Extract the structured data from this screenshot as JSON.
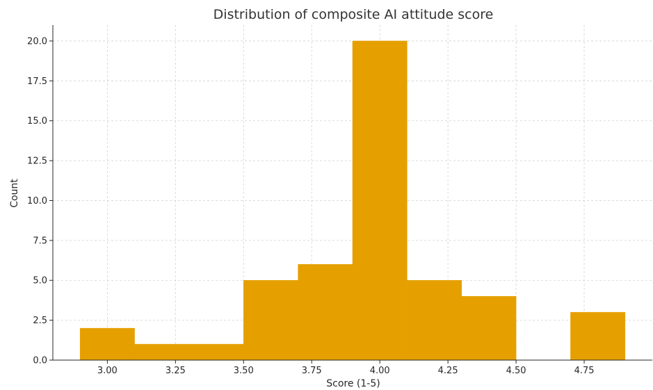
{
  "chart_data": {
    "type": "bar",
    "title": "Distribution of composite AI attitude score",
    "xlabel": "Score (1-5)",
    "ylabel": "Count",
    "bar_color": "#e5a000",
    "bins": [
      {
        "start": 2.9,
        "end": 3.1,
        "count": 2
      },
      {
        "start": 3.1,
        "end": 3.3,
        "count": 1
      },
      {
        "start": 3.3,
        "end": 3.5,
        "count": 1
      },
      {
        "start": 3.5,
        "end": 3.7,
        "count": 5
      },
      {
        "start": 3.7,
        "end": 3.9,
        "count": 6
      },
      {
        "start": 3.9,
        "end": 4.1,
        "count": 20
      },
      {
        "start": 4.1,
        "end": 4.3,
        "count": 5
      },
      {
        "start": 4.3,
        "end": 4.5,
        "count": 4
      },
      {
        "start": 4.5,
        "end": 4.7,
        "count": 0
      },
      {
        "start": 4.7,
        "end": 4.9,
        "count": 3
      }
    ],
    "xlim": [
      2.8,
      5.0
    ],
    "ylim": [
      0,
      21
    ],
    "xticks": [
      3.0,
      3.25,
      3.5,
      3.75,
      4.0,
      4.25,
      4.5,
      4.75
    ],
    "xtick_labels": [
      "3.00",
      "3.25",
      "3.50",
      "3.75",
      "4.00",
      "4.25",
      "4.50",
      "4.75"
    ],
    "yticks": [
      0,
      2.5,
      5,
      7.5,
      10,
      12.5,
      15,
      17.5,
      20
    ],
    "ytick_labels": [
      "0.0",
      "2.5",
      "5.0",
      "7.5",
      "10.0",
      "12.5",
      "15.0",
      "17.5",
      "20.0"
    ],
    "grid": true
  }
}
